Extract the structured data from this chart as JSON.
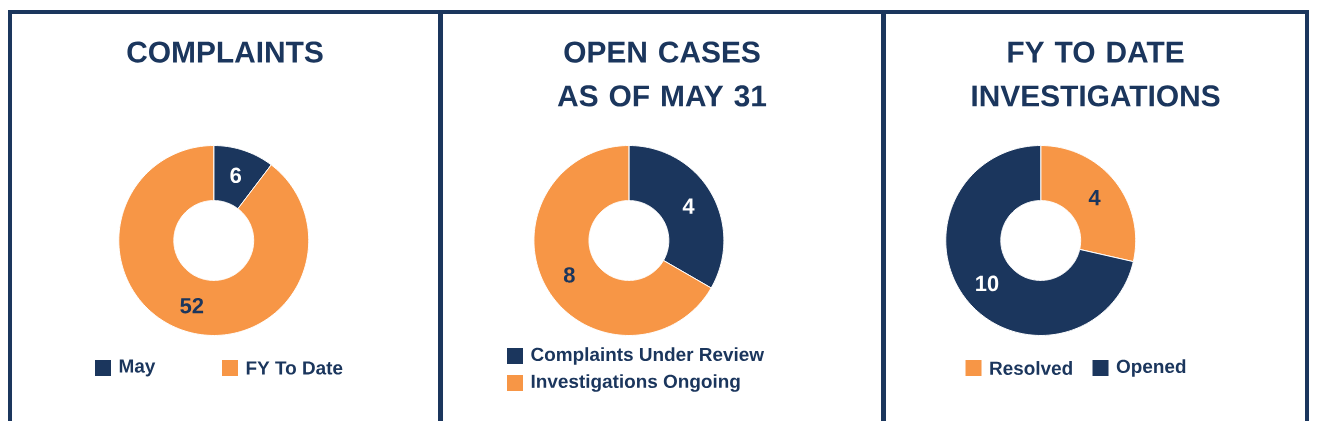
{
  "chart_data": [
    {
      "type": "donut",
      "title": "COMPLAINTS",
      "categories": [
        "May",
        "FY To Date"
      ],
      "values": [
        6,
        52
      ],
      "colors": [
        "#1b365d",
        "#f79646"
      ],
      "data_labels": true,
      "legend": "bottom"
    },
    {
      "type": "donut",
      "title": "OPEN CASES AS OF MAY 31",
      "categories": [
        "Complaints Under Review",
        "Investigations Ongoing"
      ],
      "values": [
        4,
        8
      ],
      "colors": [
        "#1b365d",
        "#f79646"
      ],
      "data_labels": true,
      "legend": "bottom"
    },
    {
      "type": "donut",
      "title": "FY TO DATE INVESTIGATIONS",
      "categories": [
        "Resolved",
        "Opened"
      ],
      "values": [
        4,
        10
      ],
      "colors": [
        "#f79646",
        "#1b365d"
      ],
      "data_labels": true,
      "legend": "bottom"
    }
  ]
}
